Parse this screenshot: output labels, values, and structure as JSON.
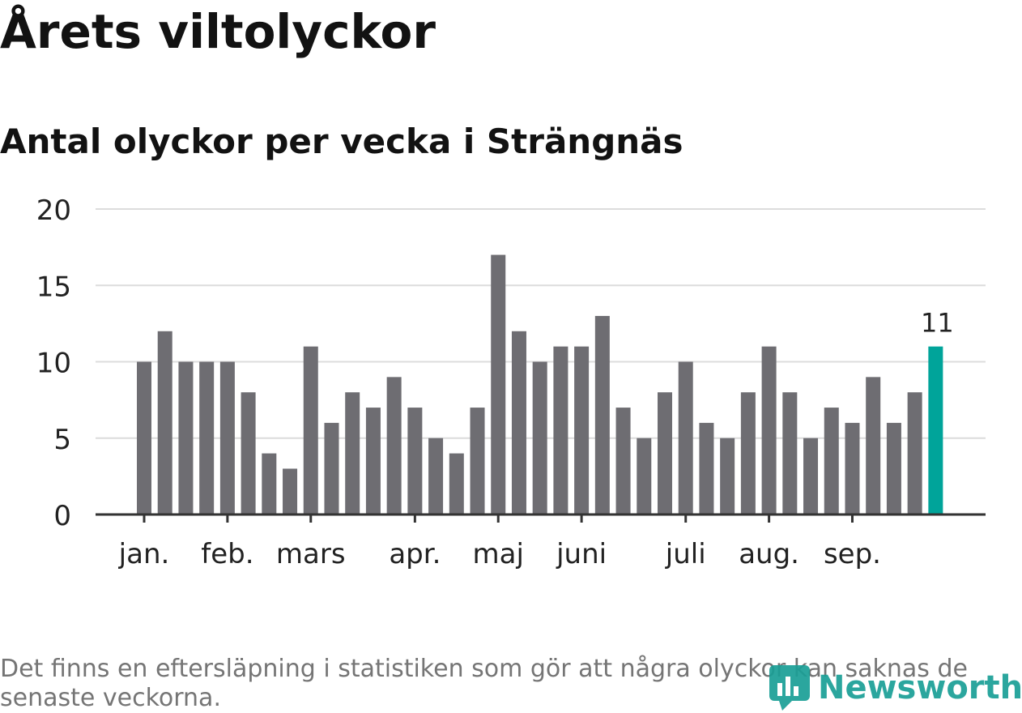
{
  "header": {
    "title": "Årets viltolyckor",
    "subtitle": "Antal olyckor per vecka i Strängnäs"
  },
  "footnote": "Det finns en eftersläpning i statistiken som gör att några olyckor kan saknas de senaste veckorna.",
  "logo": {
    "text": "Newsworthy",
    "icon": "newsworthy-logo-icon"
  },
  "colors": {
    "bar": "#6e6d72",
    "highlight": "#00a49a",
    "grid": "#dcdcdc",
    "axis": "#333333"
  },
  "chart_data": {
    "type": "bar",
    "title": "Antal olyckor per vecka i Strängnäs",
    "xlabel": "",
    "ylabel": "",
    "ylim": [
      0,
      20
    ],
    "yticks": [
      0,
      5,
      10,
      15,
      20
    ],
    "grid": true,
    "x": [
      1,
      2,
      3,
      4,
      5,
      6,
      7,
      8,
      9,
      10,
      11,
      12,
      13,
      14,
      15,
      16,
      17,
      18,
      19,
      20,
      21,
      22,
      23,
      24,
      25,
      26,
      27,
      28,
      29,
      30,
      31,
      32,
      33,
      34,
      35,
      36,
      37,
      38,
      39
    ],
    "values": [
      10,
      12,
      10,
      10,
      10,
      8,
      4,
      3,
      11,
      6,
      8,
      7,
      9,
      7,
      5,
      4,
      7,
      17,
      12,
      10,
      11,
      11,
      13,
      7,
      5,
      8,
      10,
      6,
      5,
      8,
      11,
      8,
      5,
      7,
      6,
      9,
      6,
      8,
      11
    ],
    "highlight_index": 38,
    "highlight_label": "11",
    "month_ticks": [
      {
        "label": "jan.",
        "week": 1
      },
      {
        "label": "feb.",
        "week": 5
      },
      {
        "label": "mars",
        "week": 9
      },
      {
        "label": "apr.",
        "week": 14
      },
      {
        "label": "maj",
        "week": 18
      },
      {
        "label": "juni",
        "week": 22
      },
      {
        "label": "juli",
        "week": 27
      },
      {
        "label": "aug.",
        "week": 31
      },
      {
        "label": "sep.",
        "week": 35
      }
    ]
  }
}
